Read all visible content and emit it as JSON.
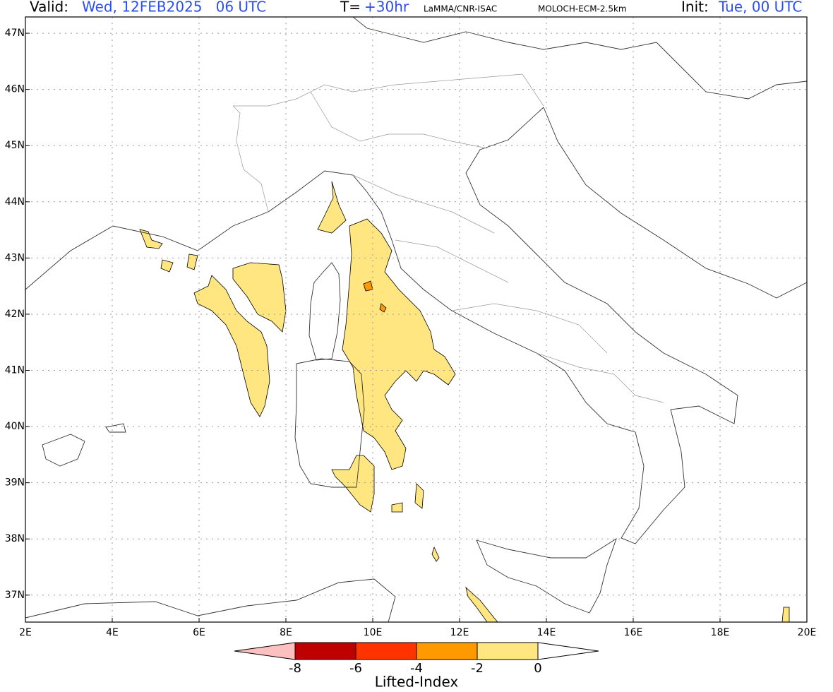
{
  "header": {
    "valid_label": "Valid:",
    "valid_time": "Wed, 12FEB2025   06 UTC",
    "step_label": "T=",
    "step": "+30hr",
    "source": "LaMMA/CNR-ISAC",
    "model": "MOLOCH-ECM-2.5km",
    "init_label": "Init:",
    "init_time": "Tue, 00 UTC"
  },
  "map": {
    "xlim": [
      2,
      20
    ],
    "ylim": [
      36.52,
      47.29
    ],
    "xticks": [
      {
        "value": 2,
        "label": "2E"
      },
      {
        "value": 4,
        "label": "4E"
      },
      {
        "value": 6,
        "label": "6E"
      },
      {
        "value": 8,
        "label": "8E"
      },
      {
        "value": 10,
        "label": "10E"
      },
      {
        "value": 12,
        "label": "12E"
      },
      {
        "value": 14,
        "label": "14E"
      },
      {
        "value": 16,
        "label": "16E"
      },
      {
        "value": 18,
        "label": "18E"
      },
      {
        "value": 20,
        "label": "20E"
      }
    ],
    "yticks": [
      {
        "value": 37,
        "label": "37N"
      },
      {
        "value": 38,
        "label": "38N"
      },
      {
        "value": 39,
        "label": "39N"
      },
      {
        "value": 40,
        "label": "40N"
      },
      {
        "value": 41,
        "label": "41N"
      },
      {
        "value": 42,
        "label": "42N"
      },
      {
        "value": 43,
        "label": "43N"
      },
      {
        "value": 44,
        "label": "44N"
      },
      {
        "value": 45,
        "label": "45N"
      },
      {
        "value": 46,
        "label": "46N"
      },
      {
        "value": 47,
        "label": "47N"
      }
    ],
    "grid": true
  },
  "colorbar": {
    "title": "Lifted-Index",
    "ticks": [
      -8,
      -6,
      -4,
      -2,
      0
    ],
    "colors": [
      "#fcc0c0",
      "#bf0000",
      "#ff3300",
      "#ff9900",
      "#ffe680",
      "#ffffff"
    ]
  }
}
